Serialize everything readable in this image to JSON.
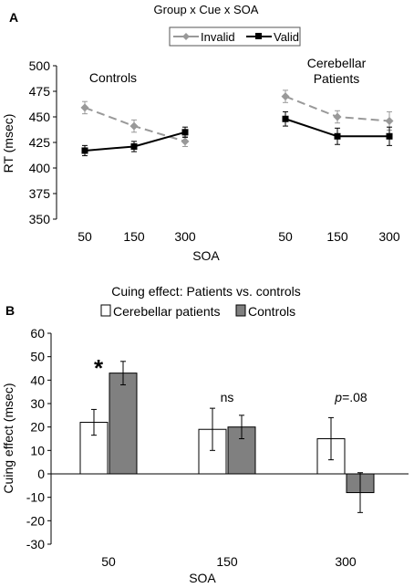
{
  "chart_data": [
    {
      "panel_label": "A",
      "type": "line",
      "title": "Group x Cue x SOA",
      "xlabel": "SOA",
      "ylabel": "RT (msec)",
      "ylim": [
        350,
        500
      ],
      "yticks": [
        350,
        375,
        400,
        425,
        450,
        475,
        500
      ],
      "legend": {
        "placement": "top-center"
      },
      "series_styles": [
        {
          "name": "Invalid",
          "color": "#999999",
          "dash": true,
          "marker": "diamond"
        },
        {
          "name": "Valid",
          "color": "#000000",
          "dash": false,
          "marker": "square"
        }
      ],
      "groups": [
        {
          "label": "Controls",
          "x": [
            "50",
            "150",
            "300"
          ],
          "series": [
            {
              "name": "Invalid",
              "values": [
                459,
                441,
                426
              ],
              "errors": [
                6,
                6,
                5
              ]
            },
            {
              "name": "Valid",
              "values": [
                417,
                421,
                435
              ],
              "errors": [
                5,
                5,
                5
              ]
            }
          ]
        },
        {
          "label": "Cerebellar Patients",
          "label_lines": [
            "Cerebellar",
            "Patients"
          ],
          "x": [
            "50",
            "150",
            "300"
          ],
          "series": [
            {
              "name": "Invalid",
              "values": [
                470,
                450,
                446
              ],
              "errors": [
                6,
                6,
                9
              ]
            },
            {
              "name": "Valid",
              "values": [
                448,
                431,
                431
              ],
              "errors": [
                7,
                8,
                9
              ]
            }
          ]
        }
      ]
    },
    {
      "panel_label": "B",
      "type": "bar",
      "title": "Cuing effect: Patients vs. controls",
      "xlabel": "SOA",
      "ylabel": "Cuing effect (msec)",
      "ylim": [
        -30,
        60
      ],
      "yticks": [
        -30,
        -20,
        -10,
        0,
        10,
        20,
        30,
        40,
        50,
        60
      ],
      "categories": [
        "50",
        "150",
        "300"
      ],
      "legend": {
        "placement": "top-center"
      },
      "series": [
        {
          "name": "Cerebellar patients",
          "color": "#ffffff",
          "values": [
            22,
            19,
            15
          ],
          "errors": [
            5.5,
            9,
            9
          ]
        },
        {
          "name": "Controls",
          "color": "#808080",
          "values": [
            43,
            20,
            -8
          ],
          "errors": [
            5,
            5,
            8.5
          ]
        }
      ],
      "annotations": [
        {
          "text": "*",
          "category": "50"
        },
        {
          "text": "ns",
          "category": "150"
        },
        {
          "text": "p=.08",
          "category": "300"
        }
      ]
    }
  ]
}
